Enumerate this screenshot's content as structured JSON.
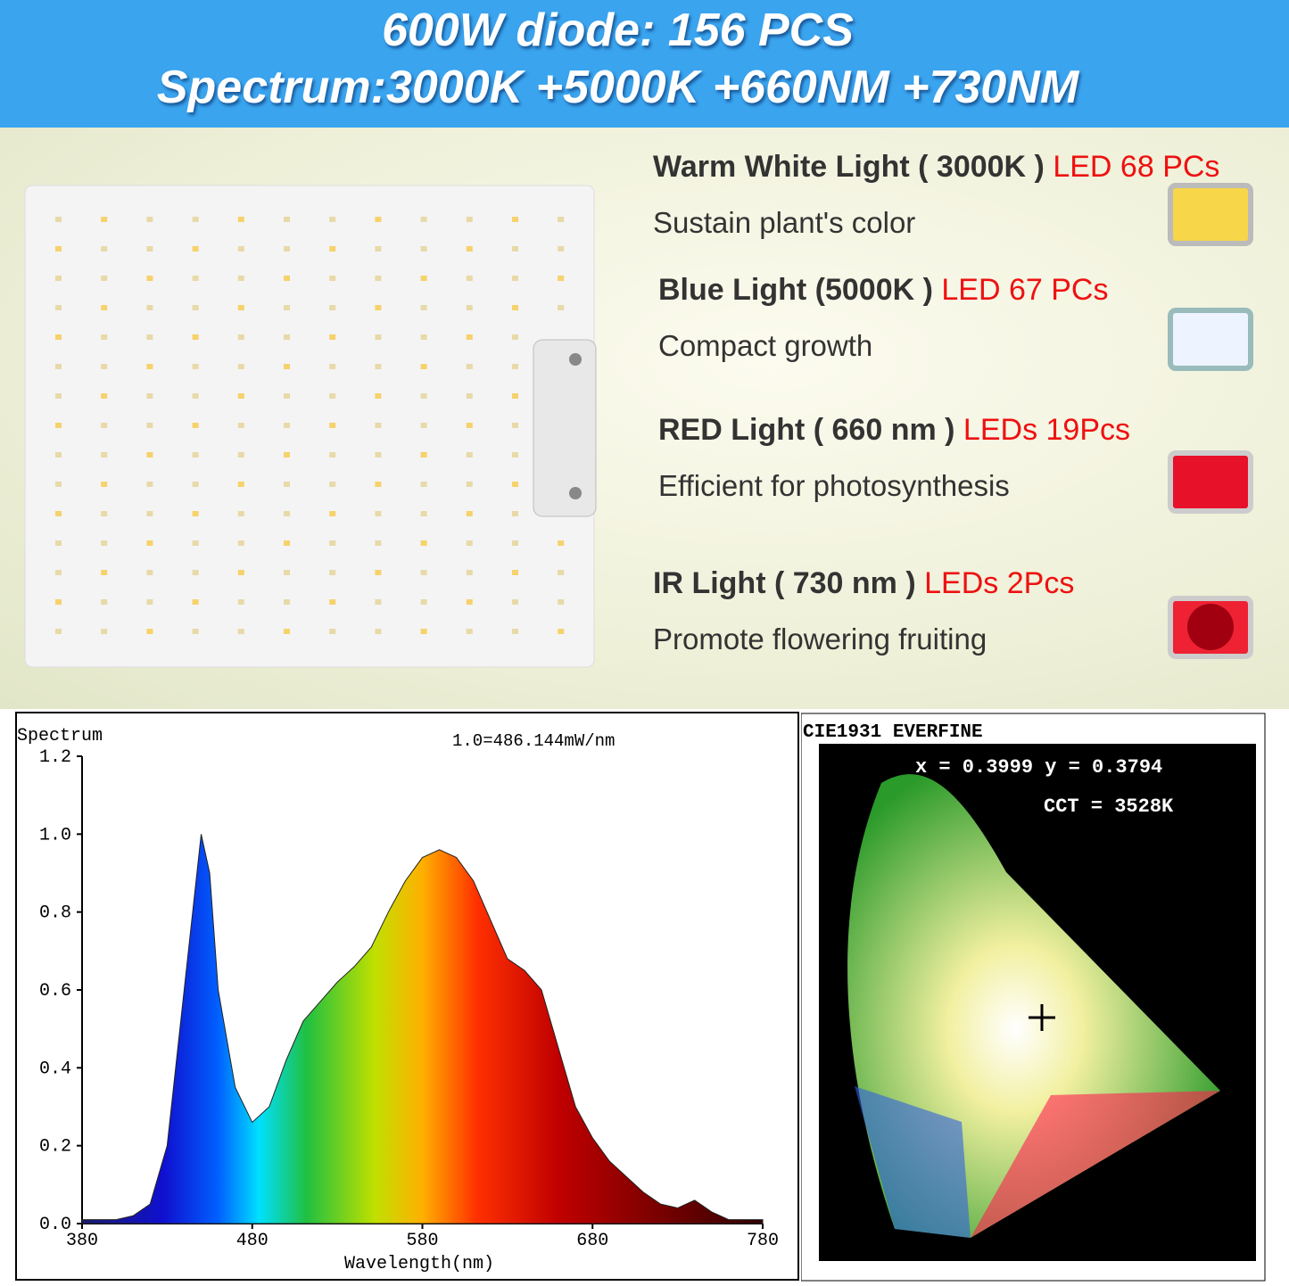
{
  "header": {
    "line1": "600W diode: 156 PCS",
    "line2": "Spectrum:3000K +5000K +660NM +730NM"
  },
  "leds": [
    {
      "name": "Warm White Light ( 3000K )",
      "count": "LED 68 PCs",
      "desc": "Sustain plant's color"
    },
    {
      "name": "Blue Light (5000K )",
      "count": "LED 67 PCs",
      "desc": "Compact growth"
    },
    {
      "name": "RED Light ( 660 nm )",
      "count": "LEDs 19Pcs",
      "desc": "Efficient for photosynthesis"
    },
    {
      "name": "IR Light ( 730 nm )",
      "count": "LEDs 2Pcs",
      "desc": "Promote flowering fruiting"
    }
  ],
  "chart_data": {
    "type": "area",
    "title": "Spectrum",
    "annotation": "1.0=486.144mW/nm",
    "x_label": "Wavelength(nm)",
    "x": [
      380,
      390,
      400,
      410,
      420,
      430,
      440,
      450,
      455,
      460,
      470,
      480,
      490,
      500,
      510,
      520,
      530,
      540,
      550,
      560,
      570,
      580,
      590,
      600,
      610,
      620,
      630,
      640,
      650,
      660,
      670,
      680,
      690,
      700,
      710,
      720,
      730,
      740,
      750,
      760,
      770,
      780
    ],
    "values": [
      0.01,
      0.01,
      0.01,
      0.02,
      0.05,
      0.2,
      0.6,
      1.0,
      0.9,
      0.6,
      0.35,
      0.26,
      0.3,
      0.42,
      0.52,
      0.57,
      0.62,
      0.66,
      0.71,
      0.8,
      0.88,
      0.94,
      0.96,
      0.94,
      0.88,
      0.78,
      0.68,
      0.65,
      0.6,
      0.45,
      0.3,
      0.22,
      0.16,
      0.12,
      0.08,
      0.05,
      0.04,
      0.06,
      0.03,
      0.01,
      0.01,
      0.01
    ],
    "xlim": [
      380,
      780
    ],
    "ylim": [
      0,
      1.2
    ],
    "xticks": [
      380,
      480,
      580,
      680,
      780
    ],
    "yticks": [
      {
        "value": 0,
        "label": "0.0"
      },
      0.2,
      0.4,
      0.6,
      0.8,
      {
        "value": 1,
        "label": "1.0"
      },
      1.2
    ]
  },
  "cie": {
    "title": "CIE1931 EVERFINE",
    "coords": "x = 0.3999 y = 0.3794",
    "cct": "CCT = 3528K"
  }
}
